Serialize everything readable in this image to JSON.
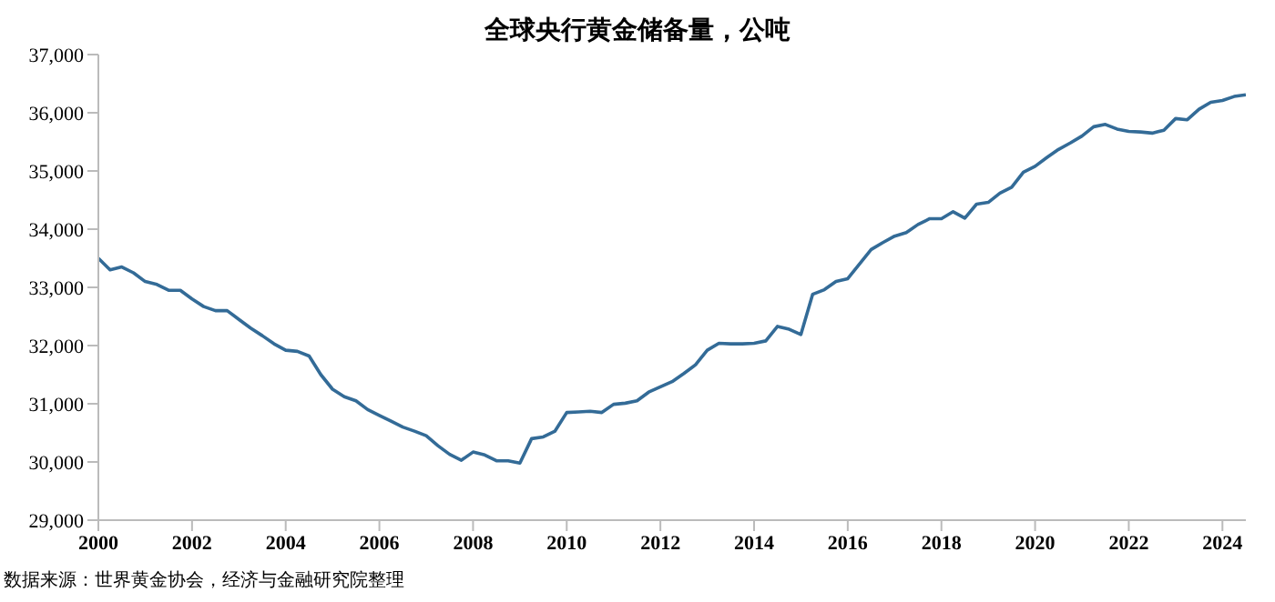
{
  "chart_data": {
    "type": "line",
    "title": "全球央行黄金储备量，公吨",
    "annotations": [
      "数据来源：世界黄金协会，经济与金融研究院整理"
    ],
    "x": [
      2000,
      2000.25,
      2000.5,
      2000.75,
      2001,
      2001.25,
      2001.5,
      2001.75,
      2002,
      2002.25,
      2002.5,
      2002.75,
      2003,
      2003.25,
      2003.5,
      2003.75,
      2004,
      2004.25,
      2004.5,
      2004.75,
      2005,
      2005.25,
      2005.5,
      2005.75,
      2006,
      2006.25,
      2006.5,
      2006.75,
      2007,
      2007.25,
      2007.5,
      2007.75,
      2008,
      2008.25,
      2008.5,
      2008.75,
      2009,
      2009.25,
      2009.5,
      2009.75,
      2010,
      2010.25,
      2010.5,
      2010.75,
      2011,
      2011.25,
      2011.5,
      2011.75,
      2012,
      2012.25,
      2012.5,
      2012.75,
      2013,
      2013.25,
      2013.5,
      2013.75,
      2014,
      2014.25,
      2014.5,
      2014.75,
      2015,
      2015.25,
      2015.5,
      2015.75,
      2016,
      2016.25,
      2016.5,
      2016.75,
      2017,
      2017.25,
      2017.5,
      2017.75,
      2018,
      2018.25,
      2018.5,
      2018.75,
      2019,
      2019.25,
      2019.5,
      2019.75,
      2020,
      2020.25,
      2020.5,
      2020.75,
      2021,
      2021.25,
      2021.5,
      2021.75,
      2022,
      2022.25,
      2022.5,
      2022.75,
      2023,
      2023.25,
      2023.5,
      2023.75,
      2024,
      2024.25,
      2024.5
    ],
    "series": [
      {
        "color": "#336b97",
        "values": [
          33500,
          33300,
          33350,
          33250,
          33100,
          33050,
          32950,
          32950,
          32800,
          32670,
          32600,
          32600,
          32450,
          32300,
          32170,
          32030,
          31920,
          31900,
          31820,
          31500,
          31250,
          31120,
          31050,
          30900,
          30800,
          30700,
          30600,
          30530,
          30450,
          30280,
          30130,
          30030,
          30170,
          30120,
          30020,
          30020,
          29980,
          30400,
          30430,
          30530,
          30850,
          30860,
          30870,
          30850,
          30990,
          31010,
          31050,
          31200,
          31290,
          31380,
          31520,
          31670,
          31920,
          32040,
          32030,
          32030,
          32040,
          32080,
          32330,
          32280,
          32190,
          32880,
          32960,
          33100,
          33150,
          33400,
          33650,
          33770,
          33880,
          33940,
          34080,
          34180,
          34180,
          34300,
          34190,
          34430,
          34460,
          34620,
          34720,
          34980,
          35080,
          35230,
          35370,
          35480,
          35600,
          35760,
          35800,
          35720,
          35680,
          35670,
          35650,
          35700,
          35900,
          35880,
          36060,
          36180,
          36210,
          36280,
          36310
        ]
      }
    ],
    "xlim": [
      2000,
      2024.5
    ],
    "xticks": [
      2000,
      2002,
      2004,
      2006,
      2008,
      2010,
      2012,
      2014,
      2016,
      2018,
      2020,
      2022,
      2024
    ],
    "ylim": [
      29000,
      37000
    ],
    "yticks": [
      {
        "value": 29000,
        "label": "29,000"
      },
      {
        "value": 30000,
        "label": "30,000"
      },
      {
        "value": 31000,
        "label": "31,000"
      },
      {
        "value": 32000,
        "label": "32,000"
      },
      {
        "value": 33000,
        "label": "33,000"
      },
      {
        "value": 34000,
        "label": "34,000"
      },
      {
        "value": 35000,
        "label": "35,000"
      },
      {
        "value": 36000,
        "label": "36,000"
      },
      {
        "value": 37000,
        "label": "37,000"
      }
    ],
    "grid": false,
    "legend": false,
    "marker": "none",
    "line_style": "solid"
  }
}
